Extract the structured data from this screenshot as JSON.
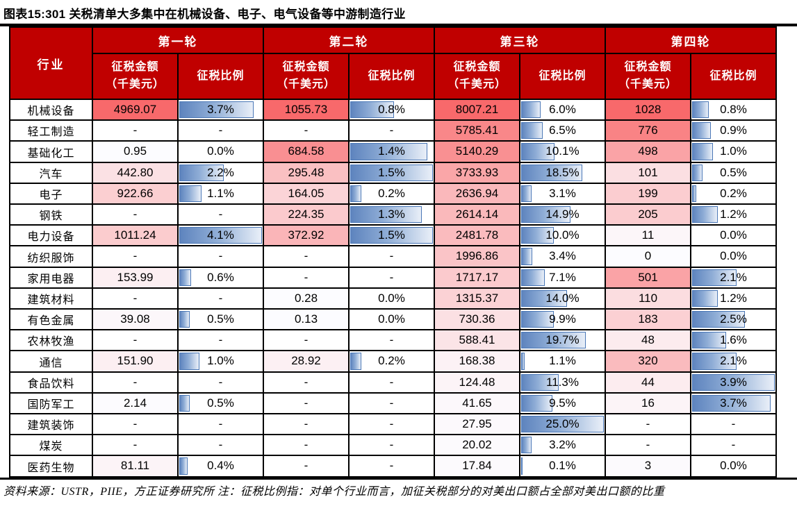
{
  "title": "图表15:301 关税清单大多集中在机械设备、电子、电气设备等中游制造行业",
  "footnote": "资料来源：USTR，PIIE，方正证券研究所  注：征税比例指：对单个行业而言，加征关税部分的对美出口额占全部对美出口额的比重",
  "colors": {
    "header_bg": "#c00000",
    "header_text": "#ffffff",
    "scale_min": "#fcfcff",
    "scale_max": "#f8696b",
    "bar_dark": "#5e84be",
    "bar_light": "#e9eff8",
    "bar_border": "#4a77b6",
    "grid": "#000000"
  },
  "chart_data": {
    "type": "table",
    "title": "图表15:301 关税清单大多集中在机械设备、电子、电气设备等中游制造行业",
    "row_header": "行业",
    "col_groups": [
      "第一轮",
      "第二轮",
      "第三轮",
      "第四轮"
    ],
    "sub_cols": [
      "征税金额（千美元）",
      "征税比例"
    ],
    "amount_header_lines": [
      "征税金额",
      "（千美元）"
    ],
    "ratio_header": "征税比例",
    "formatting": {
      "amount_cells": "per-column white-to-red color scale",
      "ratio_cells": "per-column blue gradient data bar scaled to column max"
    },
    "rows": [
      {
        "industry": "机械设备",
        "values": [
          [
            "4969.07",
            "3.7%"
          ],
          [
            "1055.73",
            "0.8%"
          ],
          [
            "8007.21",
            "6.0%"
          ],
          [
            "1028",
            "0.8%"
          ]
        ]
      },
      {
        "industry": "轻工制造",
        "values": [
          [
            "-",
            "-"
          ],
          [
            "-",
            "-"
          ],
          [
            "5785.41",
            "6.5%"
          ],
          [
            "776",
            "0.9%"
          ]
        ]
      },
      {
        "industry": "基础化工",
        "values": [
          [
            "0.95",
            "0.0%"
          ],
          [
            "684.58",
            "1.4%"
          ],
          [
            "5140.29",
            "10.1%"
          ],
          [
            "498",
            "1.0%"
          ]
        ]
      },
      {
        "industry": "汽车",
        "values": [
          [
            "442.80",
            "2.2%"
          ],
          [
            "295.48",
            "1.5%"
          ],
          [
            "3733.93",
            "18.5%"
          ],
          [
            "101",
            "0.5%"
          ]
        ]
      },
      {
        "industry": "电子",
        "values": [
          [
            "922.66",
            "1.1%"
          ],
          [
            "164.05",
            "0.2%"
          ],
          [
            "2636.94",
            "3.1%"
          ],
          [
            "199",
            "0.2%"
          ]
        ]
      },
      {
        "industry": "钢铁",
        "values": [
          [
            "-",
            "-"
          ],
          [
            "224.35",
            "1.3%"
          ],
          [
            "2614.14",
            "14.9%"
          ],
          [
            "205",
            "1.2%"
          ]
        ]
      },
      {
        "industry": "电力设备",
        "values": [
          [
            "1011.24",
            "4.1%"
          ],
          [
            "372.92",
            "1.5%"
          ],
          [
            "2481.78",
            "10.0%"
          ],
          [
            "11",
            "0.0%"
          ]
        ]
      },
      {
        "industry": "纺织服饰",
        "values": [
          [
            "-",
            "-"
          ],
          [
            "-",
            "-"
          ],
          [
            "1996.86",
            "3.4%"
          ],
          [
            "0",
            "0.0%"
          ]
        ]
      },
      {
        "industry": "家用电器",
        "values": [
          [
            "153.99",
            "0.6%"
          ],
          [
            "-",
            "-"
          ],
          [
            "1717.17",
            "7.1%"
          ],
          [
            "501",
            "2.1%"
          ]
        ]
      },
      {
        "industry": "建筑材料",
        "values": [
          [
            "-",
            "-"
          ],
          [
            "0.28",
            "0.0%"
          ],
          [
            "1315.37",
            "14.0%"
          ],
          [
            "110",
            "1.2%"
          ]
        ]
      },
      {
        "industry": "有色金属",
        "values": [
          [
            "39.08",
            "0.5%"
          ],
          [
            "0.13",
            "0.0%"
          ],
          [
            "730.36",
            "9.9%"
          ],
          [
            "183",
            "2.5%"
          ]
        ]
      },
      {
        "industry": "农林牧渔",
        "values": [
          [
            "-",
            "-"
          ],
          [
            "-",
            "-"
          ],
          [
            "588.41",
            "19.7%"
          ],
          [
            "48",
            "1.6%"
          ]
        ]
      },
      {
        "industry": "通信",
        "values": [
          [
            "151.90",
            "1.0%"
          ],
          [
            "28.92",
            "0.2%"
          ],
          [
            "168.38",
            "1.1%"
          ],
          [
            "320",
            "2.1%"
          ]
        ]
      },
      {
        "industry": "食品饮料",
        "values": [
          [
            "-",
            "-"
          ],
          [
            "-",
            "-"
          ],
          [
            "124.48",
            "11.3%"
          ],
          [
            "44",
            "3.9%"
          ]
        ]
      },
      {
        "industry": "国防军工",
        "values": [
          [
            "2.14",
            "0.5%"
          ],
          [
            "-",
            "-"
          ],
          [
            "41.65",
            "9.5%"
          ],
          [
            "16",
            "3.7%"
          ]
        ]
      },
      {
        "industry": "建筑装饰",
        "values": [
          [
            "-",
            "-"
          ],
          [
            "-",
            "-"
          ],
          [
            "27.95",
            "25.0%"
          ],
          [
            "-",
            "-"
          ]
        ]
      },
      {
        "industry": "煤炭",
        "values": [
          [
            "-",
            "-"
          ],
          [
            "-",
            "-"
          ],
          [
            "20.02",
            "3.2%"
          ],
          [
            "-",
            "-"
          ]
        ]
      },
      {
        "industry": "医药生物",
        "values": [
          [
            "81.11",
            "0.4%"
          ],
          [
            "-",
            "-"
          ],
          [
            "17.84",
            "0.1%"
          ],
          [
            "3",
            "0.0%"
          ]
        ]
      }
    ]
  }
}
